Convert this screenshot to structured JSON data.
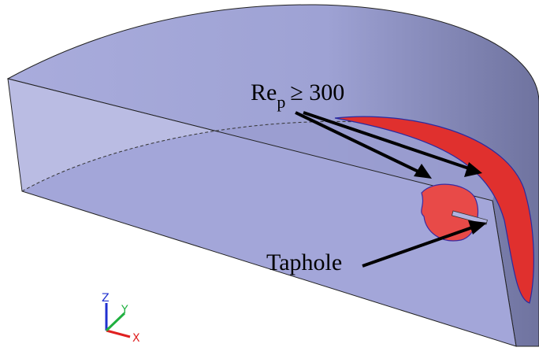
{
  "annotations": {
    "rep_label": {
      "base": "Re",
      "subscript": "p",
      "rest": "≥ 300"
    },
    "taphole": "Taphole"
  },
  "axes_triad": {
    "z": "Z",
    "y": "Y",
    "x": "X"
  }
}
